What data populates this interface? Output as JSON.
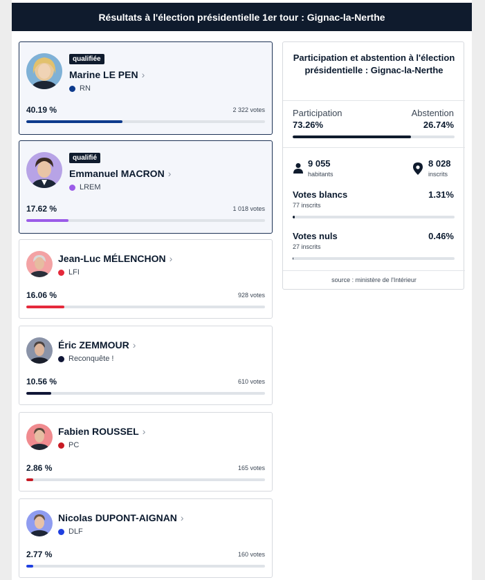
{
  "header": {
    "title": "Résultats à l'élection présidentielle 1er tour : Gignac-la-Nerthe"
  },
  "candidates": [
    {
      "name": "Marine LE PEN",
      "party": "RN",
      "party_color": "#0d3a8c",
      "percent_label": "40.19 %",
      "percent": 40.19,
      "votes_label": "2 322 votes",
      "qualified": true,
      "badge": "qualifiée",
      "bar_color": "#0d3a8c"
    },
    {
      "name": "Emmanuel MACRON",
      "party": "LREM",
      "party_color": "#9b5ce8",
      "percent_label": "17.62 %",
      "percent": 17.62,
      "votes_label": "1 018 votes",
      "qualified": true,
      "badge": "qualifié",
      "bar_color": "#9b5ce8"
    },
    {
      "name": "Jean-Luc MÉLENCHON",
      "party": "LFI",
      "party_color": "#e5293b",
      "percent_label": "16.06 %",
      "percent": 16.06,
      "votes_label": "928 votes",
      "qualified": false,
      "bar_color": "#e5293b"
    },
    {
      "name": "Éric ZEMMOUR",
      "party": "Reconquête !",
      "party_color": "#101636",
      "percent_label": "10.56 %",
      "percent": 10.56,
      "votes_label": "610 votes",
      "qualified": false,
      "bar_color": "#101636"
    },
    {
      "name": "Fabien ROUSSEL",
      "party": "PC",
      "party_color": "#c81a24",
      "percent_label": "2.86 %",
      "percent": 2.86,
      "votes_label": "165 votes",
      "qualified": false,
      "bar_color": "#c81a24"
    },
    {
      "name": "Nicolas DUPONT-AIGNAN",
      "party": "DLF",
      "party_color": "#1f3fe0",
      "percent_label": "2.77 %",
      "percent": 2.77,
      "votes_label": "160 votes",
      "qualified": false,
      "bar_color": "#1f3fe0"
    }
  ],
  "sidebar": {
    "title": "Participation et abstention à l'élection présidentielle : Gignac-la-Nerthe",
    "participation_label": "Participation",
    "participation_value": "73.26%",
    "participation": 73.26,
    "abstention_label": "Abstention",
    "abstention_value": "26.74%",
    "habitants_value": "9 055",
    "habitants_label": "habitants",
    "inscrits_value": "8 028",
    "inscrits_label": "inscrits",
    "blancs_label": "Votes blancs",
    "blancs_value": "1.31%",
    "blancs": 1.31,
    "blancs_sub": "77 inscrits",
    "nuls_label": "Votes nuls",
    "nuls_value": "0.46%",
    "nuls": 0.46,
    "nuls_sub": "27 inscrits",
    "source": "source : ministère de l'Intérieur"
  },
  "icons": {
    "habitants": "person-icon",
    "inscrits": "location-pin-icon",
    "chevron": "chevron-right-icon"
  }
}
